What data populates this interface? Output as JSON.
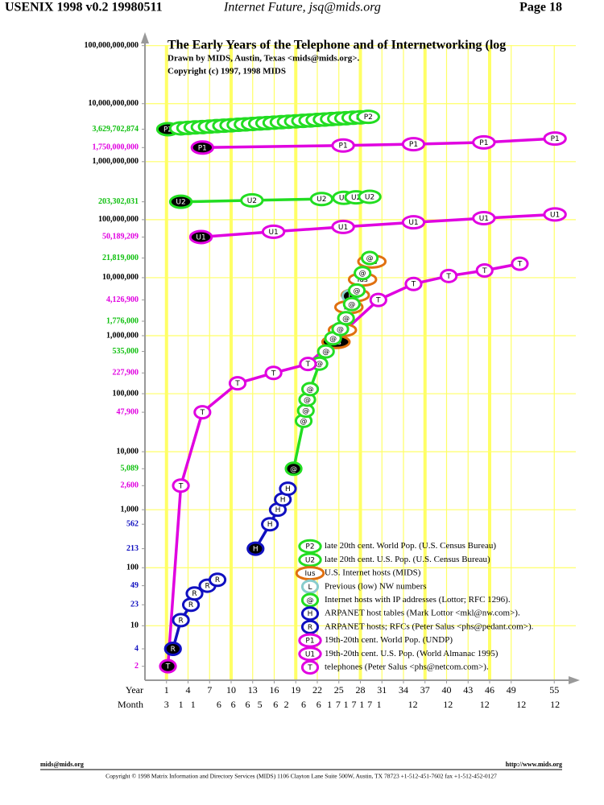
{
  "header": {
    "left": "USENIX 1998 v0.2 19980511",
    "italic": "Internet Future, jsq@mids.org",
    "right": "Page 18"
  },
  "footer": {
    "left": "mids@mids.org",
    "right": "http://www.mids.org",
    "copyright": "Copyright © 1998 Matrix Information and Directory Services (MIDS) 1106 Clayton Lane Suite 500W, Austin, TX 78723 +1-512-451-7602 fax +1-512-452-0127"
  },
  "chart_data": {
    "type": "line",
    "title": "The Early Years of the Telephone and of Internetworking (log",
    "subtitle": "Drawn by MIDS, Austin, Texas <mids@mids.org>.",
    "copyright": "Copyright (c) 1997, 1998 MIDS",
    "x_label": "Year",
    "month_label": "Month",
    "log_y": true,
    "grid": true,
    "grid_color": "#ffff66",
    "legend": "lower right",
    "xlim": [
      -2,
      58
    ],
    "ylim": [
      1.15,
      150000000000
    ],
    "xticks": [
      1,
      4,
      7,
      10,
      13,
      16,
      19,
      22,
      25,
      28,
      31,
      34,
      37,
      40,
      43,
      46,
      49,
      55
    ],
    "month_ticks": [
      {
        "value": 1,
        "label": "3"
      },
      {
        "value": 3,
        "label": "1"
      },
      {
        "value": 4.7,
        "label": "1"
      },
      {
        "value": 8.3,
        "label": "6"
      },
      {
        "value": 10.3,
        "label": "6"
      },
      {
        "value": 12.3,
        "label": "6"
      },
      {
        "value": 14,
        "label": "5"
      },
      {
        "value": 16.2,
        "label": "6"
      },
      {
        "value": 17.7,
        "label": "2"
      },
      {
        "value": 20.1,
        "label": "6"
      },
      {
        "value": 22.2,
        "label": "6"
      },
      {
        "value": 23.7,
        "label": "1"
      },
      {
        "value": 24.9,
        "label": "7"
      },
      {
        "value": 26,
        "label": "1"
      },
      {
        "value": 27.1,
        "label": "7"
      },
      {
        "value": 28.2,
        "label": "1"
      },
      {
        "value": 29.3,
        "label": "7"
      },
      {
        "value": 30.6,
        "label": "1"
      },
      {
        "value": 35.3,
        "label": "12"
      },
      {
        "value": 40.2,
        "label": "12"
      },
      {
        "value": 45.3,
        "label": "12"
      },
      {
        "value": 50.4,
        "label": "12"
      },
      {
        "value": 55.1,
        "label": "12"
      }
    ],
    "yticks": [
      {
        "value": 2,
        "label": "2",
        "color": "#e000e0"
      },
      {
        "value": 4,
        "label": "4",
        "color": "#1010c0"
      },
      10,
      {
        "value": 23,
        "label": "23",
        "color": "#1010c0"
      },
      {
        "value": 49,
        "label": "49",
        "color": "#1010c0"
      },
      100,
      {
        "value": 213,
        "label": "213",
        "color": "#1010c0"
      },
      {
        "value": 562,
        "label": "562",
        "color": "#1010c0"
      },
      {
        "value": 1000,
        "label": "1,000"
      },
      {
        "value": 2600,
        "label": "2,600",
        "color": "#e000e0"
      },
      {
        "value": 5089,
        "label": "5,089",
        "color": "#10c010"
      },
      {
        "value": 10000,
        "label": "10,000"
      },
      {
        "value": 47900,
        "label": "47,900",
        "color": "#e000e0"
      },
      {
        "value": 100000,
        "label": "100,000"
      },
      {
        "value": 227900,
        "label": "227,900",
        "color": "#e000e0"
      },
      {
        "value": 535000,
        "label": "535,000",
        "color": "#10c010"
      },
      {
        "value": 1000000,
        "label": "1,000,000"
      },
      {
        "value": 1776000,
        "label": "1,776,000",
        "color": "#10c010"
      },
      {
        "value": 4126900,
        "label": "4,126,900",
        "color": "#e000e0"
      },
      {
        "value": 10000000,
        "label": "10,000,000"
      },
      {
        "value": 21819000,
        "label": "21,819,000",
        "color": "#10c010"
      },
      {
        "value": 50189209,
        "label": "50,189,209",
        "color": "#e000e0"
      },
      {
        "value": 100000000,
        "label": "100,000,000"
      },
      {
        "value": 203302031,
        "label": "203,302,031",
        "color": "#10c010"
      },
      {
        "value": 1000000000,
        "label": "1,000,000,000"
      },
      {
        "value": 1750000000,
        "label": "1,750,000,000",
        "color": "#e000e0"
      },
      {
        "value": 3629702874,
        "label": "3,629,702,874",
        "color": "#10c010"
      },
      {
        "value": 10000000000,
        "label": "10,000,000,000"
      },
      {
        "value": 100000000000,
        "label": "100,000,000,000"
      }
    ],
    "series": [
      {
        "name": "late 20th cent. World Pop. (U.S. Census Bureau)",
        "marker": "P2",
        "color": "#22dd22",
        "x": [
          1.2,
          3,
          4,
          5,
          6,
          7,
          8,
          9,
          10,
          11,
          12,
          13,
          14,
          15,
          16,
          17,
          18,
          19,
          20,
          21,
          22,
          23,
          24,
          25,
          26,
          27,
          28,
          29.1
        ],
        "values": [
          3629702874,
          3750000000,
          3820000000,
          3890000000,
          3950000000,
          4020000000,
          4100000000,
          4170000000,
          4240000000,
          4320000000,
          4390000000,
          4470000000,
          4550000000,
          4630000000,
          4710000000,
          4790000000,
          4880000000,
          4960000000,
          5050000000,
          5140000000,
          5230000000,
          5320000000,
          5420000000,
          5510000000,
          5610000000,
          5710000000,
          5810000000,
          5920000000
        ]
      },
      {
        "name": "late 20th cent. U.S. Pop. (U.S. Census Bureau)",
        "marker": "U2",
        "color": "#22dd22",
        "x": [
          3,
          12.9,
          22.6,
          25.7,
          27.4,
          29.3
        ],
        "values": [
          203302031,
          215000000,
          227000000,
          238000000,
          243000000,
          248000000
        ]
      },
      {
        "name": "U.S. Internet hosts (MIDS)",
        "marker": "Ius",
        "color": "#e07010",
        "x": [
          24.6,
          25.5,
          26.4,
          27.3,
          28.3,
          29.6
        ],
        "values": [
          780000,
          1250000,
          3100000,
          5000000,
          9300000,
          19000000
        ]
      },
      {
        "name": "Previous (low) NW numbers",
        "marker": "L",
        "color": "#88cccc",
        "x": [
          26.6
        ],
        "values": [
          4800000
        ]
      },
      {
        "name": "Internet hosts with IP addresses (Lottor; RFC 1296).",
        "marker": "@",
        "color": "#22dd22",
        "x": [
          18.7,
          20.1,
          20.4,
          20.6,
          21,
          22.3,
          23.2,
          24.2,
          25.2,
          26,
          26.8,
          27.5,
          28.3,
          29.3
        ],
        "values": [
          5089,
          34000,
          51000,
          79000,
          120000,
          330000,
          535000,
          900000,
          1300000,
          2000000,
          3500000,
          6000000,
          12000000,
          21819000
        ]
      },
      {
        "name": "ARPANET host tables (Mark Lottor <mkl@nw.com>).",
        "marker": "H",
        "color": "#1010c0",
        "x": [
          13.4,
          15.4,
          16.5,
          17.2,
          17.9
        ],
        "values": [
          213,
          562,
          1000,
          1500,
          2300
        ]
      },
      {
        "name": "ARPANET hosts; RFCs (Peter Salus <phs@pedant.com>).",
        "marker": "R",
        "color": "#1010c0",
        "x": [
          1.9,
          3,
          4.4,
          4.9,
          6.7,
          8.1
        ],
        "values": [
          4,
          12.5,
          23,
          36,
          49,
          62
        ]
      },
      {
        "name": "19th-20th cent. World Pop. (UNDP)",
        "marker": "P1",
        "color": "#e000e0",
        "x": [
          6,
          25.6,
          35.4,
          45.2,
          55.1
        ],
        "values": [
          1750000000,
          1900000000,
          2000000000,
          2150000000,
          2500000000
        ]
      },
      {
        "name": "19th-20th cent. U.S. Pop. (World Almanac 1995)",
        "marker": "U1",
        "color": "#e000e0",
        "x": [
          5.8,
          15.9,
          25.6,
          35.4,
          45.2,
          55.1
        ],
        "values": [
          50189209,
          62000000,
          75000000,
          90000000,
          106000000,
          123000000
        ]
      },
      {
        "name": "telephones (Peter Salus <phs@netcom.com>).",
        "marker": "T",
        "color": "#e000e0",
        "x": [
          1.2,
          3,
          6,
          10.9,
          15.9,
          20.7,
          30.5,
          35.4,
          40.3,
          45.3,
          50.2
        ],
        "values": [
          2,
          2600,
          47900,
          151000,
          227900,
          325000,
          4126900,
          7800000,
          10700000,
          13300000,
          17400000
        ]
      }
    ]
  }
}
